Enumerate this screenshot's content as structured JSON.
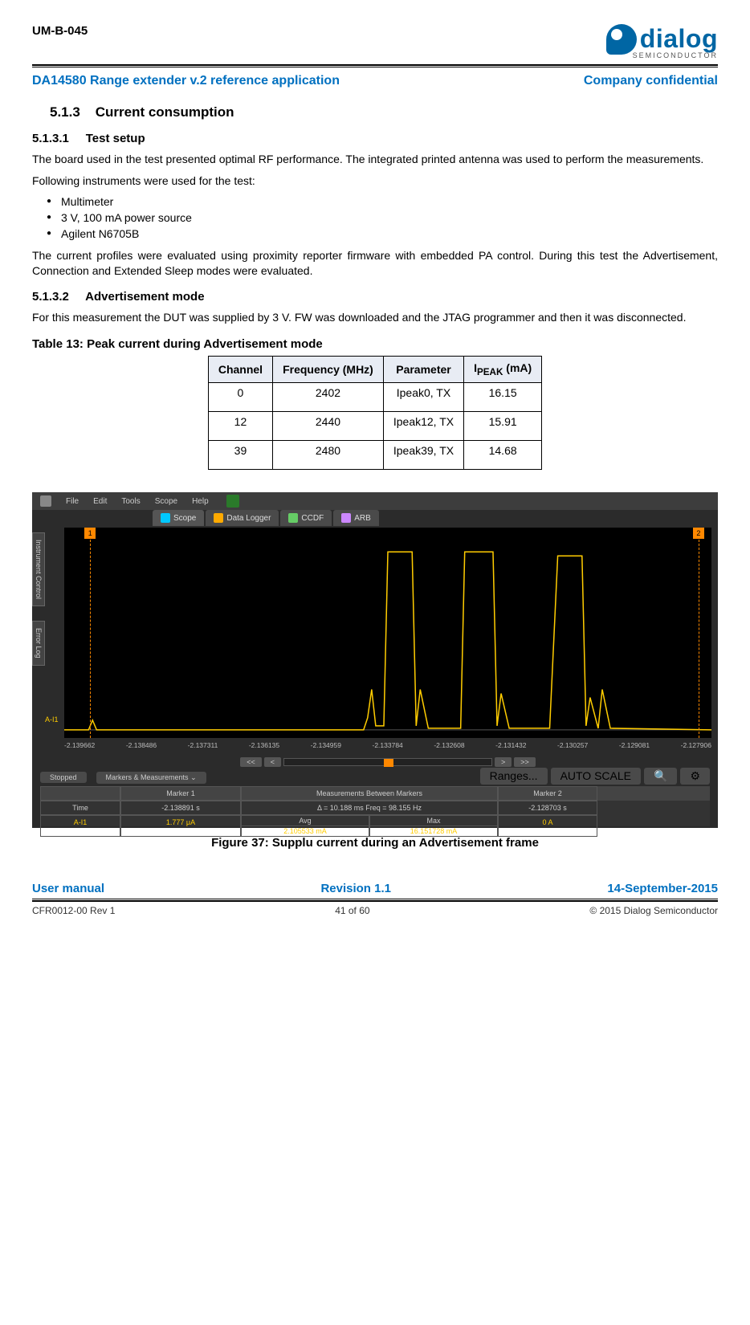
{
  "header": {
    "doc_id": "UM-B-045",
    "logo_text": "dialog",
    "logo_sub": "SEMICONDUCTOR",
    "logo_color": "#0066a4"
  },
  "subheader": {
    "title": "DA14580 Range extender v.2 reference application",
    "confidential": "Company confidential"
  },
  "section": {
    "num": "5.1.3",
    "title": "Current consumption"
  },
  "sub1": {
    "num": "5.1.3.1",
    "title": "Test setup",
    "p1": "The board used in the test presented optimal RF performance. The integrated printed antenna was used to perform the measurements.",
    "p2": " Following instruments were used for the test:",
    "bullets": [
      "Multimeter",
      "3 V, 100 mA power source",
      "Agilent N6705B"
    ],
    "p3": "The current profiles were evaluated using proximity reporter firmware with embedded PA control. During this test the Advertisement, Connection and Extended Sleep modes were evaluated."
  },
  "sub2": {
    "num": "5.1.3.2",
    "title": "Advertisement mode",
    "p1": "For this measurement the DUT was supplied by 3 V. FW was downloaded and the JTAG programmer and then it was disconnected."
  },
  "table13": {
    "caption": "Table 13: Peak current during Advertisement mode",
    "headers": [
      "Channel",
      "Frequency (MHz)",
      "Parameter",
      "IPEAK (mA)"
    ],
    "rows": [
      [
        "0",
        "2402",
        "Ipeak0, TX",
        "16.15"
      ],
      [
        "12",
        "2440",
        "Ipeak12, TX",
        "15.91"
      ],
      [
        "39",
        "2480",
        "Ipeak39, TX",
        "14.68"
      ]
    ]
  },
  "scope": {
    "menu": [
      "File",
      "Edit",
      "Tools",
      "Scope",
      "Help"
    ],
    "tabs": [
      "Scope",
      "Data Logger",
      "CCDF",
      "ARB"
    ],
    "tab_colors": [
      "#00c8ff",
      "#ffaa00",
      "#66cc66",
      "#cc88ff"
    ],
    "side_tabs": [
      "Instrument Control",
      "Error Log"
    ],
    "ylabel": "A-I1",
    "marker_flags": [
      "1",
      "2"
    ],
    "xaxis_ticks": [
      "-2.139662",
      "-2.138486",
      "-2.137311",
      "-2.136135",
      "-2.134959",
      "-2.133784",
      "-2.132608",
      "-2.131432",
      "-2.130257",
      "-2.129081",
      "-2.127906"
    ],
    "nav": [
      "<<",
      "<",
      ">",
      ">>"
    ],
    "status_left": "Stopped",
    "status_mid": "Markers & Measurements",
    "right_buttons": [
      "Ranges...",
      "AUTO SCALE"
    ],
    "meas": {
      "head_blank": "",
      "head_m1": "Marker 1",
      "head_between": "Measurements Between Markers",
      "head_m2": "Marker 2",
      "row_time_label": "Time",
      "row_time_m1": "-2.138891 s",
      "row_time_between": "Δ = 10.188 ms    Freq = 98.155 Hz",
      "row_time_m2": "-2.128703 s",
      "row2_label": "A-I1",
      "row2_m1": "1.777 μA",
      "row2_avg_label": "Avg",
      "row2_avg": "2.105533 mA",
      "row2_max_label": "Max",
      "row2_max": "16.151728 mA",
      "row2_m2": "0 A"
    },
    "trace_color": "#ffcc00",
    "marker_color": "#ff8800",
    "bg_color": "#000000"
  },
  "figure_caption": "Figure 37: Supplu current during an Advertisement frame",
  "footer1": {
    "left": "User manual",
    "mid": "Revision 1.1",
    "right": "14-September-2015"
  },
  "footer2": {
    "left": "CFR0012-00 Rev 1",
    "mid": "41 of 60",
    "right": "© 2015 Dialog Semiconductor"
  }
}
